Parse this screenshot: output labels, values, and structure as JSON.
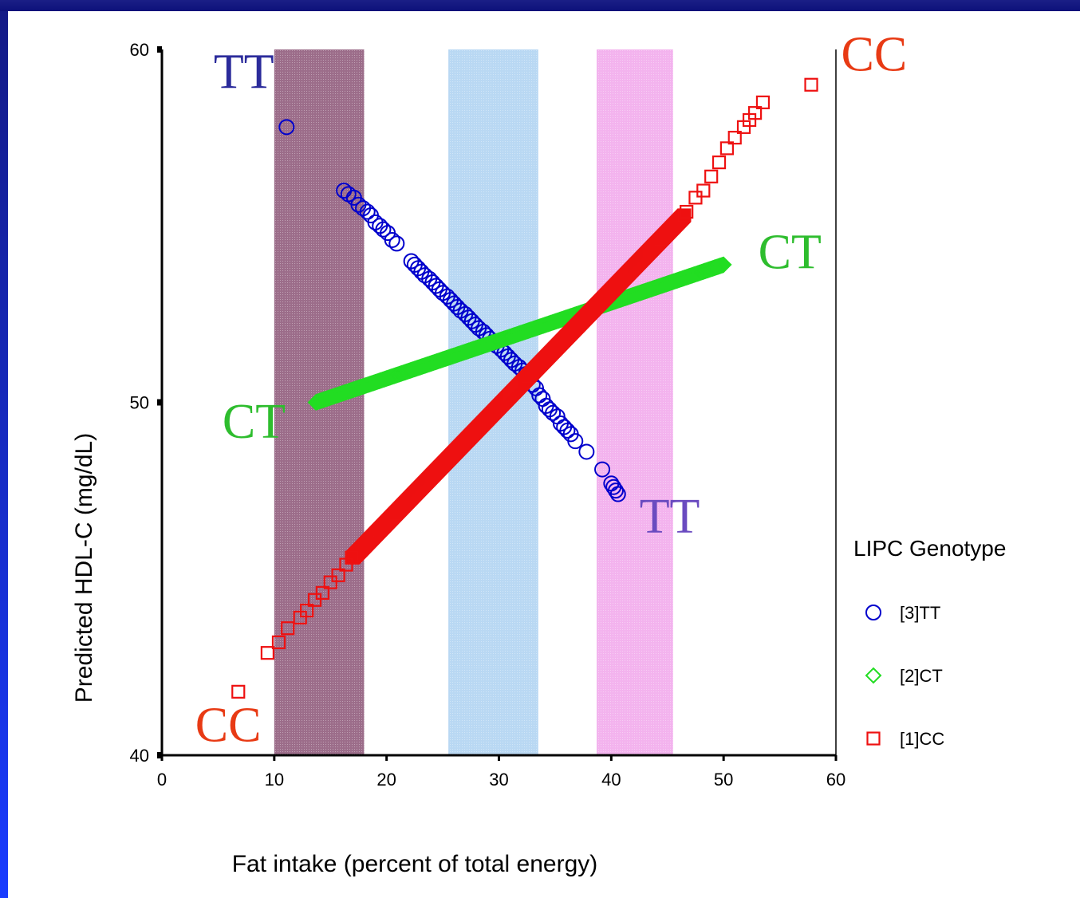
{
  "chart_data": {
    "type": "scatter",
    "xlabel": "Fat intake (percent of total energy)",
    "ylabel": "Predicted HDL-C (mg/dL)",
    "xlim": [
      0,
      60
    ],
    "ylim": [
      40,
      60
    ],
    "x_ticks": [
      "0",
      "10",
      "20",
      "30",
      "40",
      "50",
      "60"
    ],
    "y_ticks": [
      "40",
      "50",
      "60"
    ],
    "grid": false,
    "legend": {
      "title": "LIPC Genotype",
      "placement": "right",
      "entries": [
        {
          "label": "[3]TT",
          "marker": "circle",
          "color": "#0000cc"
        },
        {
          "label": "[2]CT",
          "marker": "diamond",
          "color": "#22dd22"
        },
        {
          "label": "[1]CC",
          "marker": "square",
          "color": "#ee1111"
        }
      ]
    },
    "bands": [
      {
        "x0": 10,
        "x1": 18,
        "color": "#9c6d8a"
      },
      {
        "x0": 25.5,
        "x1": 33.5,
        "color": "#b9d8f3"
      },
      {
        "x0": 38.7,
        "x1": 45.5,
        "color": "#f3b3ee"
      }
    ],
    "series": [
      {
        "name": "[3]TT",
        "marker": "circle",
        "color": "#0000cc",
        "points": [
          [
            11.1,
            57.8
          ],
          [
            16.2,
            56.0
          ],
          [
            16.6,
            55.9
          ],
          [
            17.1,
            55.8
          ],
          [
            17.5,
            55.6
          ],
          [
            17.9,
            55.5
          ],
          [
            18.3,
            55.4
          ],
          [
            18.6,
            55.3
          ],
          [
            19.0,
            55.1
          ],
          [
            19.4,
            55.0
          ],
          [
            19.7,
            54.9
          ],
          [
            20.1,
            54.8
          ],
          [
            20.5,
            54.6
          ],
          [
            20.9,
            54.5
          ],
          [
            22.2,
            54.0
          ],
          [
            22.5,
            53.9
          ],
          [
            22.8,
            53.8
          ],
          [
            23.1,
            53.7
          ],
          [
            23.4,
            53.6
          ],
          [
            23.8,
            53.5
          ],
          [
            24.1,
            53.4
          ],
          [
            24.4,
            53.3
          ],
          [
            24.7,
            53.2
          ],
          [
            25.0,
            53.1
          ],
          [
            25.4,
            53.0
          ],
          [
            25.7,
            52.9
          ],
          [
            26.0,
            52.8
          ],
          [
            26.3,
            52.7
          ],
          [
            26.6,
            52.6
          ],
          [
            27.0,
            52.5
          ],
          [
            27.3,
            52.4
          ],
          [
            27.6,
            52.3
          ],
          [
            27.9,
            52.2
          ],
          [
            28.2,
            52.1
          ],
          [
            28.6,
            52.0
          ],
          [
            28.9,
            51.9
          ],
          [
            29.2,
            51.8
          ],
          [
            29.5,
            51.7
          ],
          [
            29.8,
            51.6
          ],
          [
            30.2,
            51.5
          ],
          [
            30.5,
            51.4
          ],
          [
            30.8,
            51.3
          ],
          [
            31.1,
            51.2
          ],
          [
            31.4,
            51.1
          ],
          [
            31.8,
            51.0
          ],
          [
            32.1,
            50.9
          ],
          [
            32.4,
            50.8
          ],
          [
            32.7,
            50.7
          ],
          [
            33.0,
            50.5
          ],
          [
            33.3,
            50.4
          ],
          [
            33.6,
            50.2
          ],
          [
            33.9,
            50.1
          ],
          [
            34.2,
            49.9
          ],
          [
            34.5,
            49.8
          ],
          [
            34.8,
            49.7
          ],
          [
            35.2,
            49.6
          ],
          [
            35.5,
            49.4
          ],
          [
            35.8,
            49.3
          ],
          [
            36.1,
            49.2
          ],
          [
            36.4,
            49.1
          ],
          [
            36.8,
            48.9
          ],
          [
            37.8,
            48.6
          ],
          [
            39.2,
            48.1
          ],
          [
            40.0,
            47.7
          ],
          [
            40.2,
            47.6
          ],
          [
            40.4,
            47.5
          ],
          [
            40.6,
            47.4
          ]
        ]
      },
      {
        "name": "[2]CT",
        "marker": "diamond",
        "color": "#22dd22",
        "x_range": [
          13.7,
          50.0
        ],
        "line": {
          "x0": 13.7,
          "y0": 50.0,
          "x1": 50.0,
          "y1": 53.9
        },
        "density": 0.35
      },
      {
        "name": "[1]CC",
        "marker": "square",
        "color": "#ee1111",
        "points": [
          [
            6.8,
            41.8
          ],
          [
            9.4,
            42.9
          ],
          [
            10.4,
            43.2
          ],
          [
            11.2,
            43.6
          ],
          [
            12.3,
            43.9
          ],
          [
            12.9,
            44.1
          ],
          [
            13.6,
            44.4
          ],
          [
            14.3,
            44.6
          ],
          [
            15.0,
            44.9
          ],
          [
            15.7,
            45.1
          ],
          [
            16.4,
            45.4
          ],
          [
            16.9,
            45.6
          ],
          [
            46.7,
            55.4
          ],
          [
            47.5,
            55.8
          ],
          [
            48.2,
            56.0
          ],
          [
            48.9,
            56.4
          ],
          [
            49.6,
            56.8
          ],
          [
            50.3,
            57.2
          ],
          [
            51.0,
            57.5
          ],
          [
            51.8,
            57.8
          ],
          [
            52.3,
            58.0
          ],
          [
            52.8,
            58.2
          ],
          [
            53.5,
            58.5
          ],
          [
            57.8,
            59.0
          ]
        ],
        "line": {
          "x0": 17.0,
          "y0": 45.6,
          "x1": 46.5,
          "y1": 55.3
        },
        "density": 0.25
      }
    ],
    "annotations": [
      {
        "text": "TT",
        "x": 7.3,
        "y": 58.9,
        "color": "#2b2b9b"
      },
      {
        "text": "CC",
        "x": 63.4,
        "y": 59.4,
        "color": "#e83a14"
      },
      {
        "text": "CT",
        "x": 55.9,
        "y": 53.8,
        "color": "#2ebd2e"
      },
      {
        "text": "CT",
        "x": 8.2,
        "y": 49.0,
        "color": "#2ebd2e"
      },
      {
        "text": "TT",
        "x": 45.2,
        "y": 46.3,
        "color": "#6a4bc0"
      },
      {
        "text": "CC",
        "x": 5.9,
        "y": 40.4,
        "color": "#e83a14"
      }
    ]
  }
}
